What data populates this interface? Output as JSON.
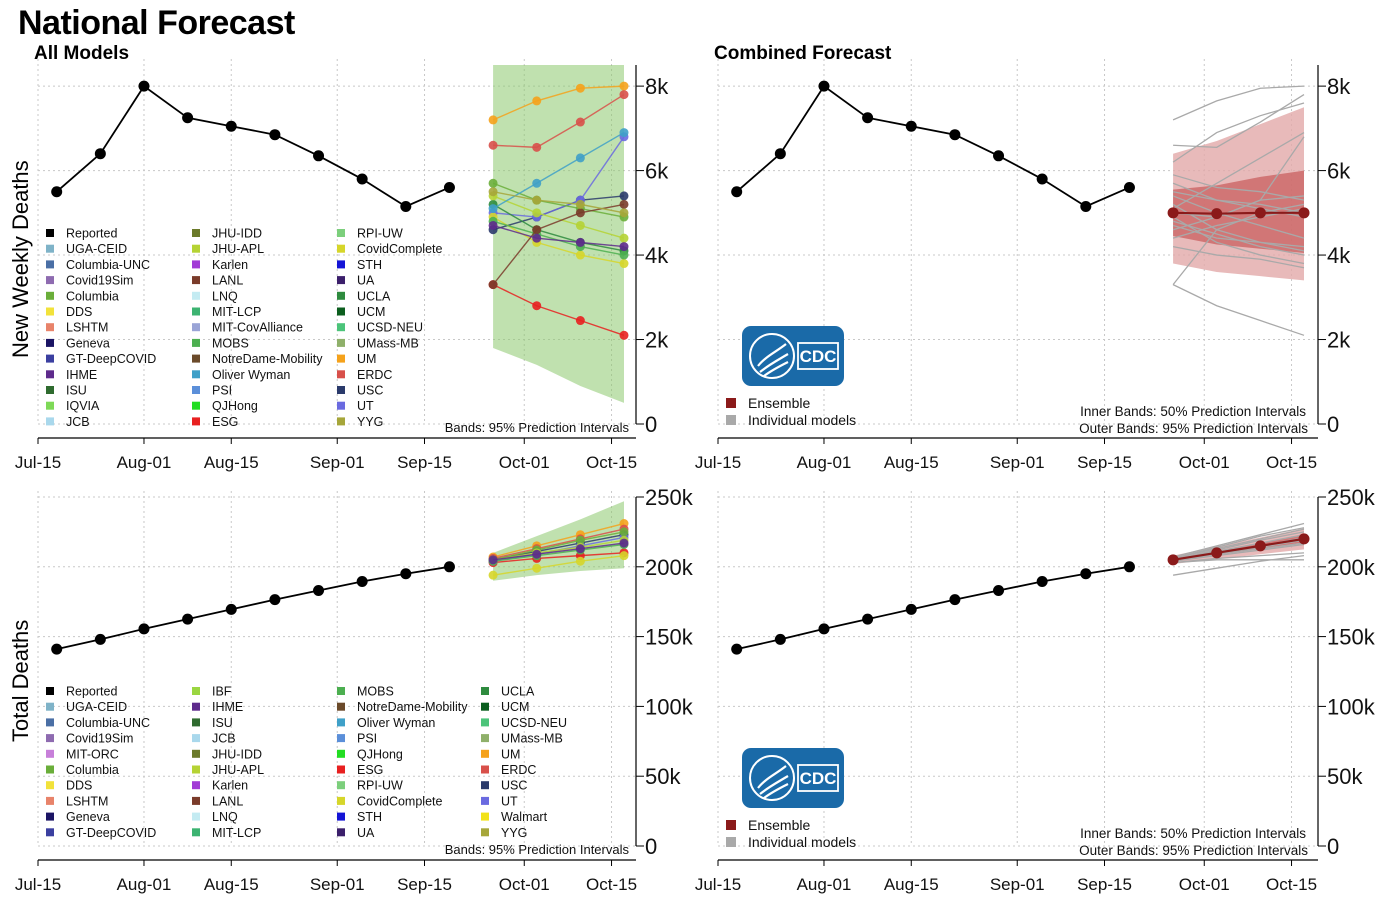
{
  "page": {
    "title": "National Forecast",
    "subtitle_left": "All Models",
    "subtitle_right": "Combined Forecast",
    "ylabel_top": "New Weekly Deaths",
    "ylabel_bottom": "Total Deaths"
  },
  "colors": {
    "reported": "#000000",
    "ensemble": "#8b1a1a",
    "ensemble_band_inner": "#c85a5a",
    "ensemble_band_outer": "#e2a9a9",
    "individual": "#a9a9a9",
    "cdc_logo": "#1a6aa8",
    "grid": "#c8c8c8"
  },
  "logo": {
    "text": "CDC",
    "icon": "hhs-eagle-icon"
  },
  "legends": {
    "weekly_models": [
      "Reported",
      "UGA-CEID",
      "Columbia-UNC",
      "Covid19Sim",
      "Columbia",
      "DDS",
      "LSHTM",
      "Geneva",
      "GT-DeepCOVID",
      "IHME",
      "ISU",
      "IQVIA",
      "JCB",
      "JHU-IDD",
      "JHU-APL",
      "Karlen",
      "LANL",
      "LNQ",
      "MIT-LCP",
      "MIT-CovAlliance",
      "MOBS",
      "NotreDame-Mobility",
      "Oliver Wyman",
      "PSI",
      "QJHong",
      "ESG",
      "RPI-UW",
      "CovidComplete",
      "STH",
      "UA",
      "UCLA",
      "UCM",
      "UCSD-NEU",
      "UMass-MB",
      "UM",
      "ERDC",
      "USC",
      "UT",
      "YYG"
    ],
    "weekly_colors": [
      "#000000",
      "#7fb3c8",
      "#4a6fa5",
      "#8e6bb0",
      "#6aae3a",
      "#f2e23a",
      "#e8836a",
      "#1b1464",
      "#3b3fa0",
      "#5e2a8c",
      "#2f6b2f",
      "#7ed957",
      "#a9d8ec",
      "#6b7a2a",
      "#b5d334",
      "#a23bd6",
      "#7a3b2a",
      "#c4ebf2",
      "#3cb371",
      "#9aa4d6",
      "#4caf50",
      "#6b4a2a",
      "#3fa0c8",
      "#5b8fd9",
      "#22dd22",
      "#e82020",
      "#7ccf7c",
      "#d6d62a",
      "#1414d6",
      "#3b1f6b",
      "#2e8b3e",
      "#0b5e1e",
      "#4cc47a",
      "#8fb06a",
      "#f5a21b",
      "#d8504a",
      "#2a3a6b",
      "#6a6ae0",
      "#a6a63a"
    ],
    "total_models": [
      "Reported",
      "UGA-CEID",
      "Columbia-UNC",
      "Covid19Sim",
      "MIT-ORC",
      "Columbia",
      "DDS",
      "LSHTM",
      "Geneva",
      "GT-DeepCOVID",
      "IBF",
      "IHME",
      "ISU",
      "JCB",
      "JHU-IDD",
      "JHU-APL",
      "Karlen",
      "LANL",
      "LNQ",
      "MIT-LCP",
      "MOBS",
      "NotreDame-Mobility",
      "Oliver Wyman",
      "PSI",
      "QJHong",
      "ESG",
      "RPI-UW",
      "CovidComplete",
      "STH",
      "UA",
      "UCLA",
      "UCM",
      "UCSD-NEU",
      "UMass-MB",
      "UM",
      "ERDC",
      "USC",
      "UT",
      "Walmart",
      "YYG"
    ],
    "total_colors": [
      "#000000",
      "#7fb3c8",
      "#4a6fa5",
      "#8e6bb0",
      "#c77fd9",
      "#6aae3a",
      "#f2e23a",
      "#e8836a",
      "#1b1464",
      "#3b3fa0",
      "#9ad641",
      "#5e2a8c",
      "#2f6b2f",
      "#a9d8ec",
      "#6b7a2a",
      "#b5d334",
      "#a23bd6",
      "#7a3b2a",
      "#c4ebf2",
      "#3cb371",
      "#4caf50",
      "#6b4a2a",
      "#3fa0c8",
      "#5b8fd9",
      "#22dd22",
      "#e82020",
      "#7ccf7c",
      "#d6d62a",
      "#1414d6",
      "#3b1f6b",
      "#2e8b3e",
      "#0b5e1e",
      "#4cc47a",
      "#8fb06a",
      "#f5a21b",
      "#d8504a",
      "#2a3a6b",
      "#6a6ae0",
      "#f2e21a",
      "#a6a63a"
    ],
    "combined": [
      "Ensemble",
      "Individual models"
    ]
  },
  "notes": {
    "all_models_bands": "Bands: 95% Prediction Intervals",
    "inner_bands": "Inner Bands: 50% Prediction Intervals",
    "outer_bands": "Outer Bands: 95% Prediction Intervals"
  },
  "chart_data": [
    {
      "id": "weekly-all",
      "type": "line",
      "title": "All Models",
      "ylabel": "New Weekly Deaths",
      "x_ticks": [
        "Jul-15",
        "Aug-01",
        "Aug-15",
        "Sep-01",
        "Sep-15",
        "Oct-01",
        "Oct-15"
      ],
      "y_ticks": [
        "0",
        "2k",
        "4k",
        "6k",
        "8k"
      ],
      "ylim": [
        0,
        8500
      ],
      "grid": true,
      "reported": {
        "x": [
          "2020-07-18",
          "2020-07-25",
          "2020-08-01",
          "2020-08-08",
          "2020-08-15",
          "2020-08-22",
          "2020-08-29",
          "2020-09-05",
          "2020-09-12",
          "2020-09-19"
        ],
        "y": [
          5500,
          6400,
          8000,
          7250,
          7050,
          6850,
          6350,
          5800,
          5150,
          5600
        ]
      },
      "forecast_x": [
        "2020-09-26",
        "2020-10-03",
        "2020-10-10",
        "2020-10-17"
      ],
      "band_95": {
        "lower": [
          1800,
          1400,
          900,
          500
        ],
        "upper": [
          8500,
          8500,
          8500,
          8500
        ]
      },
      "series": [
        {
          "model": "UM",
          "values": [
            7200,
            7650,
            7950,
            8000
          ]
        },
        {
          "model": "ERDC",
          "values": [
            6600,
            6550,
            7150,
            7800
          ]
        },
        {
          "model": "ESG",
          "values": [
            3300,
            2800,
            2450,
            2100
          ]
        },
        {
          "model": "USC",
          "values": [
            4600,
            4900,
            5300,
            5400
          ]
        },
        {
          "model": "UT",
          "values": [
            5000,
            4900,
            5300,
            6800
          ]
        },
        {
          "model": "UCLA",
          "values": [
            5200,
            4600,
            4300,
            4100
          ]
        },
        {
          "model": "CovidComplete",
          "values": [
            4900,
            4300,
            4000,
            3800
          ]
        },
        {
          "model": "Columbia",
          "values": [
            5700,
            5300,
            5100,
            4900
          ]
        },
        {
          "model": "JHU-APL",
          "values": [
            5400,
            5000,
            4700,
            4400
          ]
        },
        {
          "model": "MOBS",
          "values": [
            4800,
            4500,
            4200,
            4000
          ]
        },
        {
          "model": "LANL",
          "values": [
            3300,
            4600,
            5000,
            5200
          ]
        },
        {
          "model": "IHME",
          "values": [
            4700,
            4400,
            4300,
            4200
          ]
        },
        {
          "model": "Oliver Wyman",
          "values": [
            5100,
            5700,
            6300,
            6900
          ]
        },
        {
          "model": "YYG",
          "values": [
            5500,
            5300,
            5200,
            5000
          ]
        }
      ]
    },
    {
      "id": "weekly-combined",
      "type": "line",
      "title": "Combined Forecast",
      "x_ticks": [
        "Jul-15",
        "Aug-01",
        "Aug-15",
        "Sep-01",
        "Sep-15",
        "Oct-01",
        "Oct-15"
      ],
      "y_ticks": [
        "0",
        "2k",
        "4k",
        "6k",
        "8k"
      ],
      "ylim": [
        0,
        8500
      ],
      "grid": true,
      "reported": {
        "x": [
          "2020-07-18",
          "2020-07-25",
          "2020-08-01",
          "2020-08-08",
          "2020-08-15",
          "2020-08-22",
          "2020-08-29",
          "2020-09-05",
          "2020-09-12",
          "2020-09-19"
        ],
        "y": [
          5500,
          6400,
          8000,
          7250,
          7050,
          6850,
          6350,
          5800,
          5150,
          5600
        ]
      },
      "forecast_x": [
        "2020-09-26",
        "2020-10-03",
        "2020-10-10",
        "2020-10-17"
      ],
      "ensemble": [
        5000,
        4980,
        5000,
        5000
      ],
      "band_50": {
        "lower": [
          4450,
          4250,
          4150,
          4050
        ],
        "upper": [
          5550,
          5650,
          5850,
          6000
        ]
      },
      "band_95": {
        "lower": [
          3800,
          3600,
          3500,
          3400
        ],
        "upper": [
          6400,
          6700,
          7100,
          7500
        ]
      },
      "individual_models": [
        [
          7200,
          7650,
          7950,
          8000
        ],
        [
          6600,
          6550,
          7150,
          7800
        ],
        [
          3300,
          2800,
          2450,
          2100
        ],
        [
          4600,
          4900,
          5300,
          5400
        ],
        [
          5000,
          4900,
          5300,
          6800
        ],
        [
          5200,
          4600,
          4300,
          4100
        ],
        [
          4900,
          4300,
          4000,
          3800
        ],
        [
          5700,
          5300,
          5100,
          4900
        ],
        [
          5400,
          5000,
          4700,
          4400
        ],
        [
          4800,
          4500,
          4200,
          4000
        ],
        [
          3300,
          4600,
          5000,
          5200
        ],
        [
          4700,
          4400,
          4300,
          4200
        ],
        [
          5100,
          5700,
          6300,
          6900
        ],
        [
          5500,
          5300,
          5200,
          5000
        ],
        [
          6200,
          6900,
          7300,
          7600
        ],
        [
          4200,
          4000,
          3900,
          3700
        ],
        [
          5900,
          5600,
          5500,
          5300
        ],
        [
          4400,
          4700,
          4900,
          5100
        ]
      ]
    },
    {
      "id": "total-all",
      "type": "line",
      "ylabel": "Total Deaths",
      "x_ticks": [
        "Jul-15",
        "Aug-01",
        "Aug-15",
        "Sep-01",
        "Sep-15",
        "Oct-01",
        "Oct-15"
      ],
      "y_ticks": [
        "0",
        "50k",
        "100k",
        "150k",
        "200k",
        "250k"
      ],
      "ylim": [
        0,
        250000
      ],
      "grid": true,
      "reported": {
        "x": [
          "2020-07-18",
          "2020-07-25",
          "2020-08-01",
          "2020-08-08",
          "2020-08-15",
          "2020-08-22",
          "2020-08-29",
          "2020-09-05",
          "2020-09-12",
          "2020-09-19"
        ],
        "y": [
          141000,
          148000,
          155500,
          162500,
          169500,
          176500,
          183000,
          189500,
          195000,
          200000
        ]
      },
      "forecast_x": [
        "2020-09-26",
        "2020-10-03",
        "2020-10-10",
        "2020-10-17"
      ],
      "band_95": {
        "lower": [
          190000,
          194000,
          197000,
          199000
        ],
        "upper": [
          210000,
          222000,
          234000,
          247000
        ]
      },
      "series": [
        {
          "model": "UM",
          "values": [
            207000,
            215000,
            223000,
            231000
          ]
        },
        {
          "model": "ERDC",
          "values": [
            206000,
            213000,
            220000,
            227000
          ]
        },
        {
          "model": "ESG",
          "values": [
            203000,
            206000,
            208000,
            210000
          ]
        },
        {
          "model": "USC",
          "values": [
            205000,
            211000,
            217000,
            223000
          ]
        },
        {
          "model": "UT",
          "values": [
            204000,
            209000,
            215000,
            221000
          ]
        },
        {
          "model": "CovidComplete",
          "values": [
            194000,
            199000,
            204000,
            208000
          ]
        },
        {
          "model": "Columbia",
          "values": [
            205000,
            212000,
            219000,
            225000
          ]
        },
        {
          "model": "JHU-APL",
          "values": [
            205000,
            210000,
            214000,
            219000
          ]
        },
        {
          "model": "MOBS",
          "values": [
            204000,
            208000,
            212000,
            216000
          ]
        },
        {
          "model": "IHME",
          "values": [
            205000,
            209000,
            213000,
            217000
          ]
        }
      ]
    },
    {
      "id": "total-combined",
      "type": "line",
      "x_ticks": [
        "Jul-15",
        "Aug-01",
        "Aug-15",
        "Sep-01",
        "Sep-15",
        "Oct-01",
        "Oct-15"
      ],
      "y_ticks": [
        "0",
        "50k",
        "100k",
        "150k",
        "200k",
        "250k"
      ],
      "ylim": [
        0,
        250000
      ],
      "grid": true,
      "reported": {
        "x": [
          "2020-07-18",
          "2020-07-25",
          "2020-08-01",
          "2020-08-08",
          "2020-08-15",
          "2020-08-22",
          "2020-08-29",
          "2020-09-05",
          "2020-09-12",
          "2020-09-19"
        ],
        "y": [
          141000,
          148000,
          155500,
          162500,
          169500,
          176500,
          183000,
          189500,
          195000,
          200000
        ]
      },
      "forecast_x": [
        "2020-09-26",
        "2020-10-03",
        "2020-10-10",
        "2020-10-17"
      ],
      "ensemble": [
        205000,
        210000,
        215000,
        220000
      ],
      "band_50": {
        "lower": [
          204000,
          208500,
          213000,
          217500
        ],
        "upper": [
          206000,
          211500,
          217000,
          222500
        ]
      },
      "band_95": {
        "lower": [
          202000,
          205500,
          209000,
          212500
        ],
        "upper": [
          208000,
          214500,
          221000,
          227500
        ]
      },
      "individual_models": [
        [
          207000,
          215000,
          223000,
          231000
        ],
        [
          206000,
          213000,
          220000,
          227000
        ],
        [
          203000,
          206000,
          208000,
          210000
        ],
        [
          205000,
          211000,
          217000,
          223000
        ],
        [
          204000,
          209000,
          215000,
          221000
        ],
        [
          194000,
          199000,
          204000,
          208000
        ],
        [
          205000,
          212000,
          219000,
          225000
        ],
        [
          205000,
          210000,
          214000,
          219000
        ],
        [
          204000,
          208000,
          212000,
          216000
        ],
        [
          205000,
          209000,
          213000,
          217000
        ],
        [
          203000,
          205000,
          205000,
          205000
        ],
        [
          206000,
          214000,
          222000,
          228000
        ]
      ]
    }
  ]
}
